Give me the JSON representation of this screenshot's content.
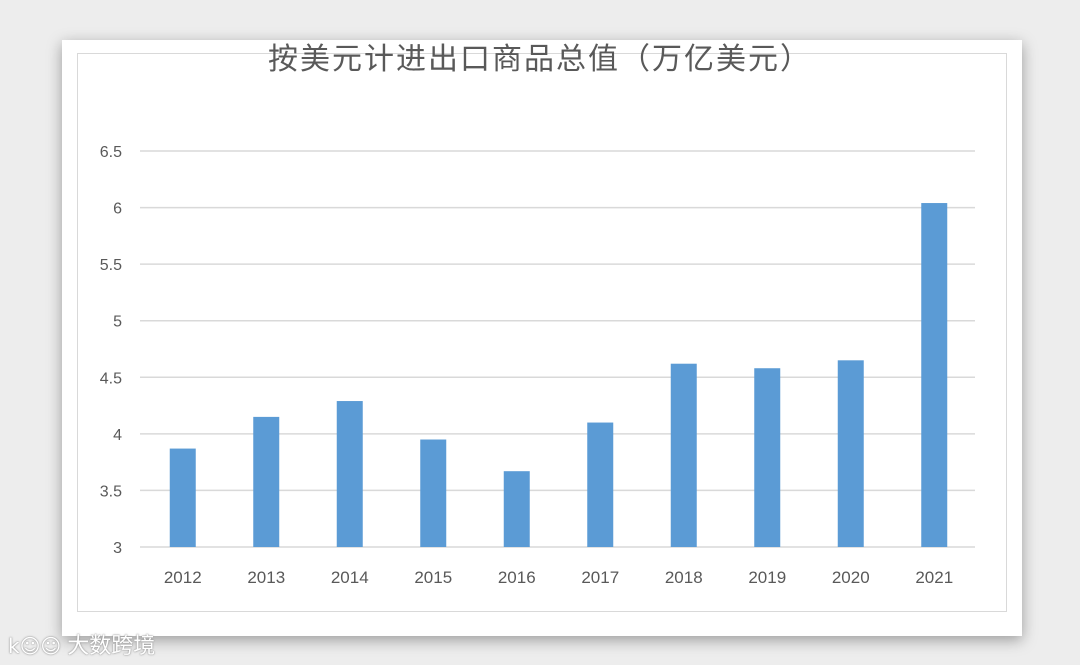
{
  "chart_data": {
    "type": "bar",
    "title": "按美元计进出口商品总值（万亿美元）",
    "categories": [
      "2012",
      "2013",
      "2014",
      "2015",
      "2016",
      "2017",
      "2018",
      "2019",
      "2020",
      "2021"
    ],
    "values": [
      3.87,
      4.15,
      4.29,
      3.95,
      3.67,
      4.1,
      4.62,
      4.58,
      4.65,
      6.04
    ],
    "ylim": [
      3,
      6.5
    ],
    "yticks": [
      "3",
      "3.5",
      "4",
      "4.5",
      "5",
      "5.5",
      "6",
      "6.5"
    ],
    "xlabel": "",
    "ylabel": "",
    "grid": true,
    "bar_color": "#5b9bd5"
  },
  "watermark": {
    "logo": "k☺☺",
    "text": "大数跨境"
  }
}
